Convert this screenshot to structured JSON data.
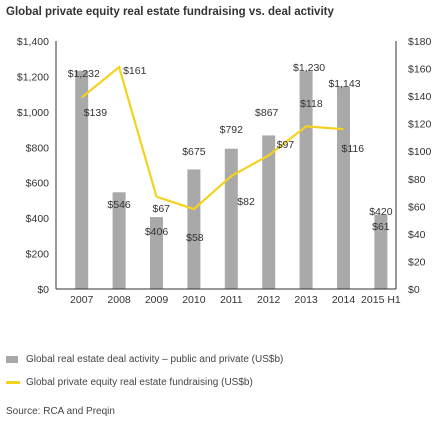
{
  "title": "Global private equity real estate fundraising vs. deal activity",
  "legend": {
    "bar_label": "Global real estate deal activity – public and private (US$b)",
    "line_label": "Global private equity real estate fundraising (US$b)"
  },
  "source": "Source: RCA and Preqin",
  "colors": {
    "bar": "#a9a9a9",
    "line": "#f5d21f",
    "axis": "#333333"
  },
  "chart_data": {
    "type": "bar",
    "categories": [
      "2007",
      "2008",
      "2009",
      "2010",
      "2011",
      "2012",
      "2013",
      "2014",
      "2015 H1"
    ],
    "series": [
      {
        "name": "Global real estate deal activity – public and private (US$b)",
        "type": "bar",
        "axis": "left",
        "values": [
          1232,
          546,
          406,
          675,
          792,
          867,
          1230,
          1143,
          420
        ],
        "labels": [
          "$1,232",
          "$546",
          "$406",
          "$675",
          "$792",
          "$867",
          "$1,230",
          "$1,143",
          "$420"
        ]
      },
      {
        "name": "Global private equity real estate fundraising (US$b)",
        "type": "line",
        "axis": "right",
        "values": [
          139,
          161,
          67,
          58,
          82,
          97,
          118,
          116,
          61
        ],
        "labels": [
          "$139",
          "$161",
          "$67",
          "$58",
          "$82",
          "$97",
          "$118",
          "$116",
          "$61"
        ]
      }
    ],
    "left_axis": {
      "ylim": [
        0,
        1400
      ],
      "ticks": [
        "$0",
        "$200",
        "$400",
        "$600",
        "$800",
        "$1,000",
        "$1,200",
        "$1,400"
      ]
    },
    "right_axis": {
      "ylim": [
        0,
        180
      ],
      "ticks": [
        "$0",
        "$20",
        "$40",
        "$60",
        "$80",
        "$100",
        "$120",
        "$140",
        "$160",
        "$180"
      ]
    },
    "grid": false,
    "legend_position": "bottom"
  }
}
